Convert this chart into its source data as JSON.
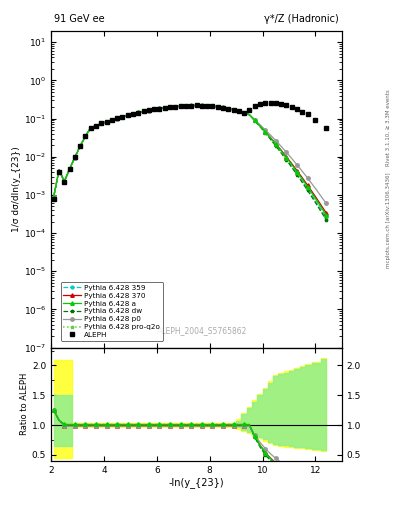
{
  "title_left": "91 GeV ee",
  "title_right": "γ*/Z (Hadronic)",
  "xlabel": "-ln(y_{23})",
  "ylabel_main": "1/σ dσ/dln(y_{23})",
  "ylabel_ratio": "Ratio to ALEPH",
  "watermark": "ALEPH_2004_S5765862",
  "right_label_top": "Rivet 3.1.10, ≥ 3.3M events",
  "right_label_bot": "mcplots.cern.ch [arXiv:1306.3436]",
  "x_min": 2.0,
  "x_max": 13.0,
  "y_main_min": 1e-07,
  "y_main_max": 20.0,
  "y_ratio_min": 0.4,
  "y_ratio_max": 2.3,
  "line_colors": {
    "359": "#00cccc",
    "370": "#cc0000",
    "a": "#00cc00",
    "dw": "#007700",
    "p0": "#999999",
    "proq2o": "#66cc44"
  },
  "legend_entries": [
    "ALEPH",
    "Pythia 6.428 359",
    "Pythia 6.428 370",
    "Pythia 6.428 a",
    "Pythia 6.428 dw",
    "Pythia 6.428 p0",
    "Pythia 6.428 pro-q2o"
  ]
}
